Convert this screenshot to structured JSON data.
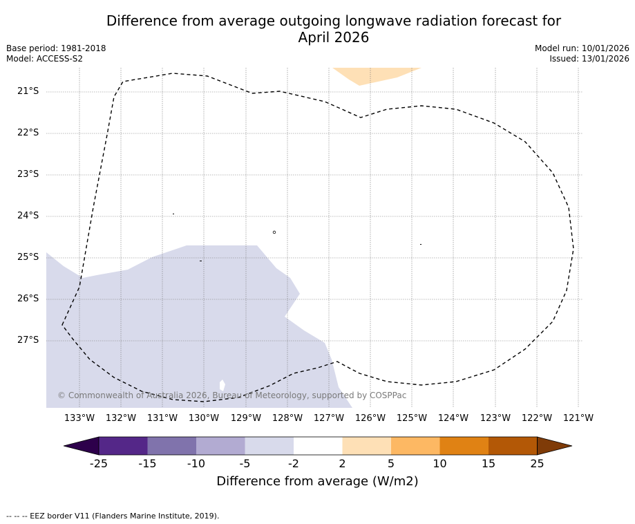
{
  "title_line1": "Difference from average outgoing longwave radiation forecast for",
  "title_line2": "April 2026",
  "meta": {
    "base_period": "Base period: 1981-2018",
    "model": "Model: ACCESS-S2",
    "model_run": "Model run: 10/01/2026",
    "issued": "Issued: 13/01/2026"
  },
  "latitude_labels": [
    "21°S",
    "22°S",
    "23°S",
    "24°S",
    "25°S",
    "26°S",
    "27°S"
  ],
  "longitude_labels": [
    "133°W",
    "132°W",
    "131°W",
    "130°W",
    "129°W",
    "128°W",
    "127°W",
    "126°W",
    "125°W",
    "124°W",
    "123°W",
    "122°W",
    "121°W"
  ],
  "copyright": "© Commonwealth of Australia 2026, Bureau of Meteorology, supported by COSPPac",
  "colorbar": {
    "ticks": [
      "-25",
      "-15",
      "-10",
      "-5",
      "-2",
      "2",
      "5",
      "10",
      "15",
      "25"
    ],
    "colors": [
      "#2d004b",
      "#542788",
      "#8073ac",
      "#b2abd2",
      "#d8daeb",
      "#ffffff",
      "#fee0b6",
      "#fdb863",
      "#e08214",
      "#b35806",
      "#7f3b08"
    ],
    "label": "Difference from average (W/m2)"
  },
  "footer": "-- -- -- EEZ border V11 (Flanders Marine Institute, 2019)."
}
